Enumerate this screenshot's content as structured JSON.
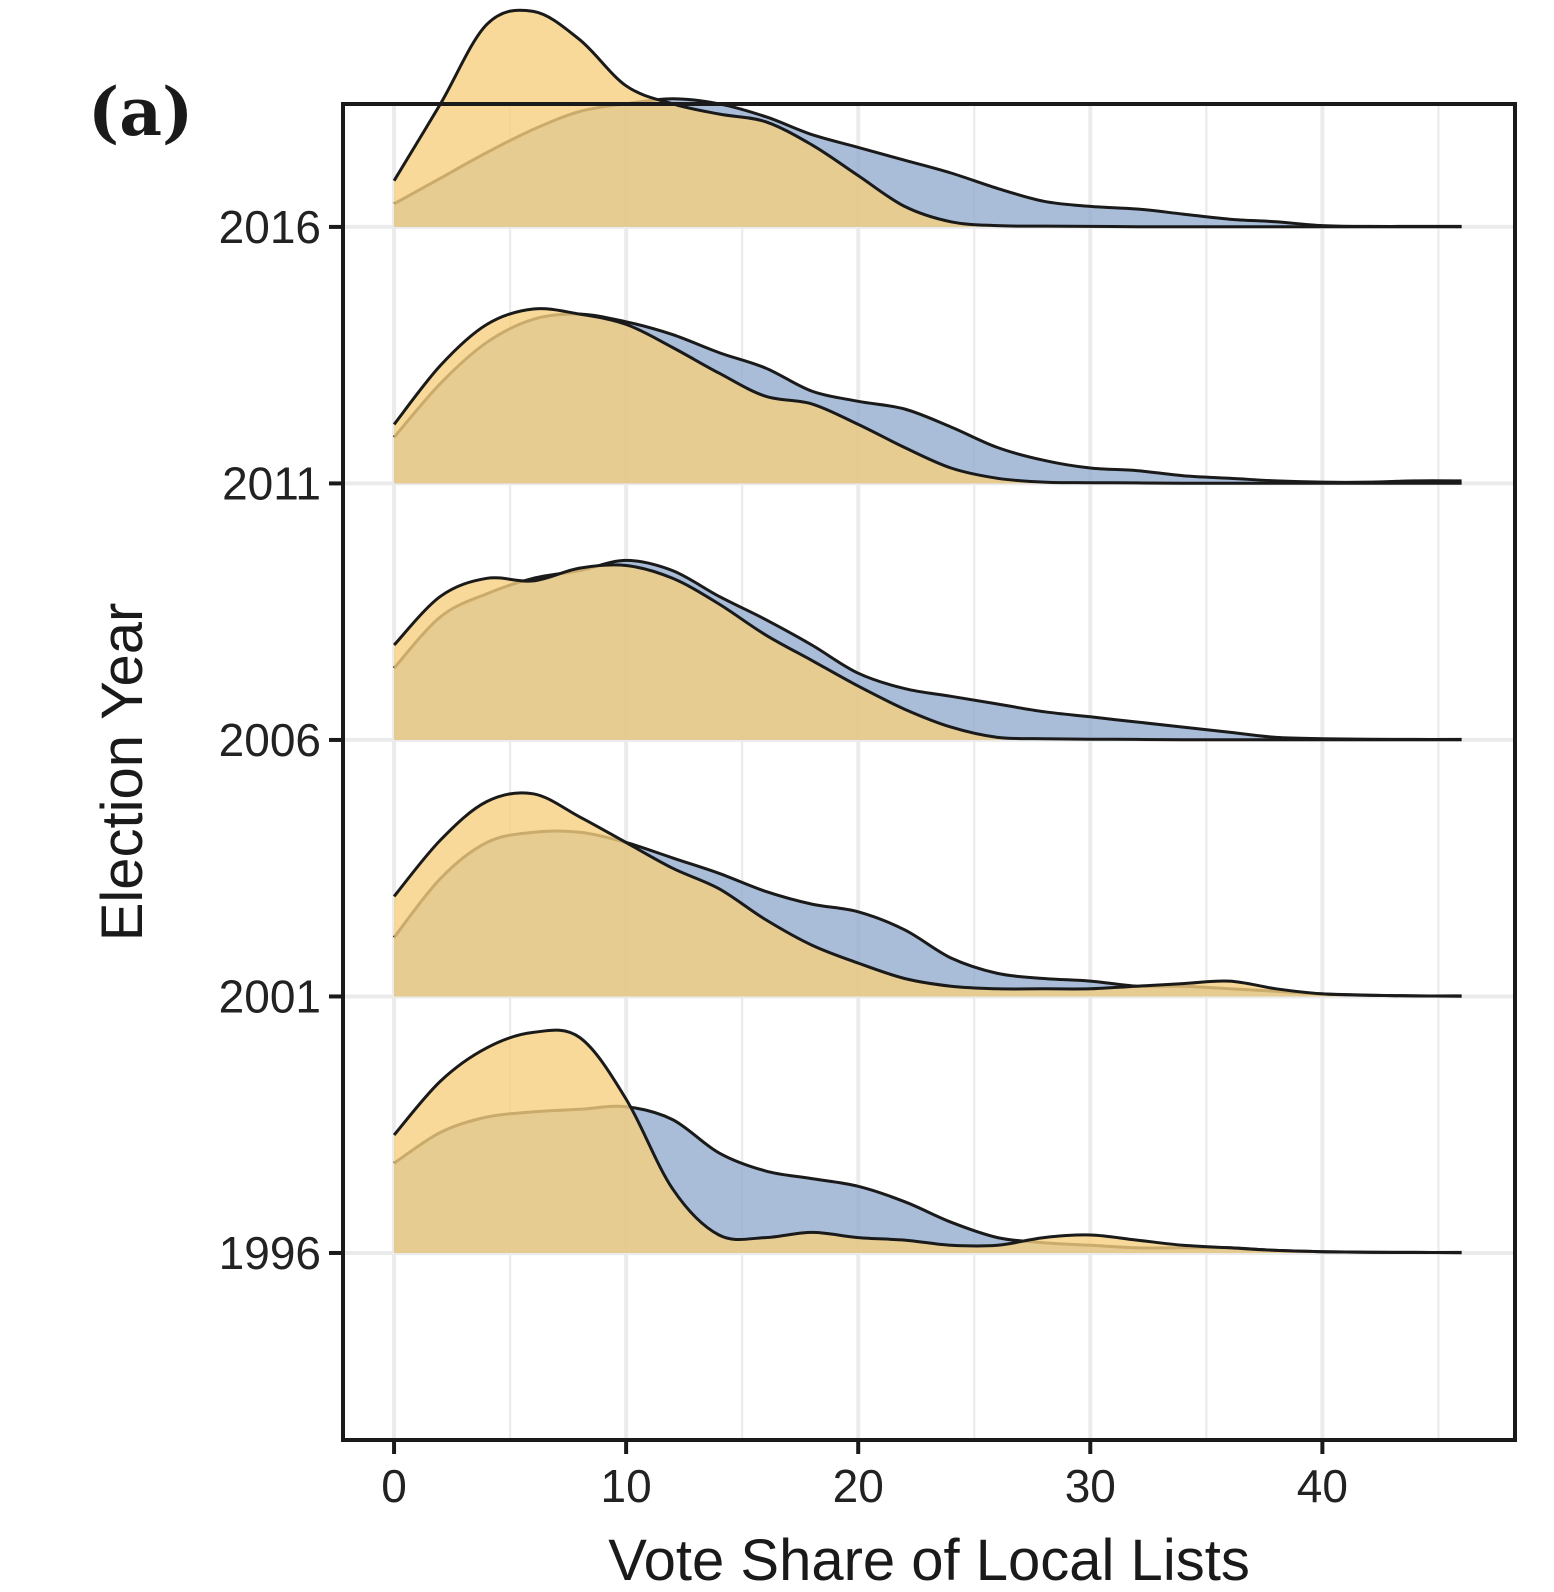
{
  "panel_label": "(a)",
  "chart_data": {
    "type": "area",
    "subtype": "ridgeline-density",
    "xlabel": "Vote Share of Local Lists",
    "ylabel": "Election Year",
    "xlim": [
      -2.2,
      48.3
    ],
    "x_ticks": [
      0,
      10,
      20,
      30,
      40
    ],
    "x_tick_labels": [
      "0",
      "10",
      "20",
      "30",
      "40"
    ],
    "y_categories": [
      "1996",
      "2001",
      "2006",
      "2011",
      "2016"
    ],
    "ridge_spacing_fraction": 0.192,
    "grid": true,
    "legend": "none",
    "colors": {
      "blue": "#93acd0",
      "yellow": "#f6d07f"
    },
    "fill_opacity": 0.8,
    "ridges": [
      {
        "year": "1996",
        "blue": {
          "x": [
            0,
            2,
            4,
            6,
            8,
            10,
            12,
            14,
            16,
            18,
            20,
            22,
            24,
            26,
            28,
            30,
            32,
            34,
            36,
            38,
            40,
            42,
            44,
            46
          ],
          "height": [
            0.35,
            0.47,
            0.53,
            0.55,
            0.56,
            0.57,
            0.52,
            0.39,
            0.32,
            0.29,
            0.26,
            0.2,
            0.12,
            0.06,
            0.04,
            0.03,
            0.02,
            0.02,
            0.02,
            0.01,
            0.005,
            0.003,
            0.002,
            0.002
          ]
        },
        "yellow": {
          "x": [
            0,
            2,
            4,
            6,
            8,
            10,
            12,
            14,
            16,
            18,
            20,
            22,
            24,
            26,
            28,
            30,
            32,
            34,
            36,
            38,
            40,
            42,
            44,
            46
          ],
          "height": [
            0.46,
            0.67,
            0.8,
            0.86,
            0.84,
            0.6,
            0.25,
            0.07,
            0.06,
            0.08,
            0.06,
            0.05,
            0.03,
            0.03,
            0.06,
            0.07,
            0.05,
            0.03,
            0.02,
            0.01,
            0.005,
            0.003,
            0.002,
            0.001
          ]
        }
      },
      {
        "year": "2001",
        "blue": {
          "x": [
            0,
            2,
            4,
            6,
            8,
            10,
            12,
            14,
            16,
            18,
            20,
            22,
            24,
            26,
            28,
            30,
            32,
            34,
            36,
            38,
            40,
            42,
            44,
            46
          ],
          "height": [
            0.23,
            0.46,
            0.6,
            0.64,
            0.64,
            0.6,
            0.54,
            0.48,
            0.41,
            0.36,
            0.33,
            0.26,
            0.15,
            0.09,
            0.07,
            0.06,
            0.04,
            0.04,
            0.03,
            0.02,
            0.01,
            0.005,
            0.002,
            0.002
          ]
        },
        "yellow": {
          "x": [
            0,
            2,
            4,
            6,
            8,
            10,
            12,
            14,
            16,
            18,
            20,
            22,
            24,
            26,
            28,
            30,
            32,
            34,
            36,
            38,
            40,
            42,
            44,
            46
          ],
          "height": [
            0.39,
            0.61,
            0.76,
            0.79,
            0.7,
            0.6,
            0.5,
            0.42,
            0.3,
            0.2,
            0.13,
            0.07,
            0.04,
            0.03,
            0.03,
            0.03,
            0.04,
            0.05,
            0.06,
            0.03,
            0.01,
            0.005,
            0.002,
            0.001
          ]
        }
      },
      {
        "year": "2006",
        "blue": {
          "x": [
            0,
            2,
            4,
            6,
            8,
            10,
            12,
            14,
            16,
            18,
            20,
            22,
            24,
            26,
            28,
            30,
            32,
            34,
            36,
            38,
            40,
            42,
            44,
            46
          ],
          "height": [
            0.28,
            0.48,
            0.57,
            0.63,
            0.66,
            0.7,
            0.66,
            0.56,
            0.47,
            0.37,
            0.26,
            0.2,
            0.17,
            0.14,
            0.11,
            0.09,
            0.07,
            0.05,
            0.03,
            0.01,
            0.005,
            0.003,
            0.002,
            0.002
          ]
        },
        "yellow": {
          "x": [
            0,
            2,
            4,
            6,
            8,
            10,
            12,
            14,
            16,
            18,
            20,
            22,
            24,
            26,
            28,
            30,
            32,
            34,
            36,
            38,
            40,
            42,
            44,
            46
          ],
          "height": [
            0.37,
            0.56,
            0.63,
            0.62,
            0.67,
            0.68,
            0.63,
            0.53,
            0.41,
            0.31,
            0.21,
            0.12,
            0.05,
            0.01,
            0.005,
            0.003,
            0.002,
            0.001,
            0.001,
            0.001,
            0.001,
            0.001,
            0.001,
            0.001
          ]
        }
      },
      {
        "year": "2011",
        "blue": {
          "x": [
            0,
            2,
            4,
            6,
            8,
            10,
            12,
            14,
            16,
            18,
            20,
            22,
            24,
            26,
            28,
            30,
            32,
            34,
            36,
            38,
            40,
            42,
            44,
            46
          ],
          "height": [
            0.18,
            0.39,
            0.55,
            0.64,
            0.66,
            0.63,
            0.58,
            0.51,
            0.45,
            0.36,
            0.32,
            0.29,
            0.22,
            0.14,
            0.09,
            0.06,
            0.05,
            0.03,
            0.02,
            0.01,
            0.005,
            0.005,
            0.01,
            0.01
          ]
        },
        "yellow": {
          "x": [
            0,
            2,
            4,
            6,
            8,
            10,
            12,
            14,
            16,
            18,
            20,
            22,
            24,
            26,
            28,
            30,
            32,
            34,
            36,
            38,
            40,
            42,
            44,
            46
          ],
          "height": [
            0.23,
            0.46,
            0.62,
            0.68,
            0.66,
            0.62,
            0.53,
            0.43,
            0.34,
            0.31,
            0.23,
            0.14,
            0.06,
            0.02,
            0.005,
            0.003,
            0.002,
            0.001,
            0.001,
            0.001,
            0.001,
            0.001,
            0.001,
            0.001
          ]
        }
      },
      {
        "year": "2016",
        "blue": {
          "x": [
            0,
            2,
            4,
            6,
            8,
            10,
            12,
            14,
            16,
            18,
            20,
            22,
            24,
            26,
            28,
            30,
            32,
            34,
            36,
            38,
            40,
            42,
            44,
            46
          ],
          "height": [
            0.09,
            0.19,
            0.29,
            0.38,
            0.45,
            0.48,
            0.5,
            0.48,
            0.43,
            0.36,
            0.31,
            0.26,
            0.21,
            0.15,
            0.1,
            0.08,
            0.07,
            0.05,
            0.03,
            0.02,
            0.005,
            0.002,
            0.002,
            0.002
          ]
        },
        "yellow": {
          "x": [
            0,
            2,
            4,
            6,
            8,
            10,
            12,
            14,
            16,
            18,
            20,
            22,
            24,
            26,
            28,
            30,
            32,
            34,
            36,
            38,
            40,
            42,
            44,
            46
          ],
          "height": [
            0.18,
            0.48,
            0.79,
            0.84,
            0.73,
            0.55,
            0.48,
            0.44,
            0.41,
            0.32,
            0.2,
            0.08,
            0.02,
            0.005,
            0.003,
            0.002,
            0.001,
            0.001,
            0.001,
            0.001,
            0.001,
            0.001,
            0.001,
            0.001
          ]
        }
      }
    ]
  }
}
